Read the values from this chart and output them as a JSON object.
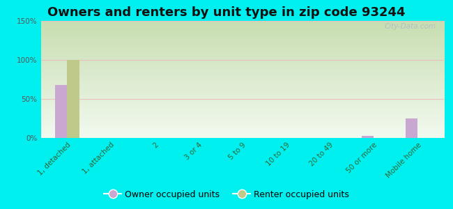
{
  "title": "Owners and renters by unit type in zip code 93244",
  "categories": [
    "1, detached",
    "1, attached",
    "2",
    "3 or 4",
    "5 to 9",
    "10 to 19",
    "20 to 49",
    "50 or more",
    "Mobile home"
  ],
  "owner_values": [
    68,
    0,
    0,
    0,
    0,
    0,
    0,
    3,
    25
  ],
  "renter_values": [
    100,
    0,
    0,
    0,
    0,
    0,
    0,
    0,
    0
  ],
  "owner_color": "#c8a8d0",
  "renter_color": "#bec98a",
  "background_color": "#00f0f0",
  "ylim": [
    0,
    150
  ],
  "yticks": [
    0,
    50,
    100,
    150
  ],
  "ytick_labels": [
    "0%",
    "50%",
    "100%",
    "150%"
  ],
  "bar_width": 0.28,
  "title_fontsize": 13,
  "tick_fontsize": 7.5,
  "legend_fontsize": 9,
  "watermark": "City-Data.com",
  "grid_color": "#e8c0c0",
  "grad_top": "#d8edd8",
  "grad_bottom": "#f0f8f0"
}
